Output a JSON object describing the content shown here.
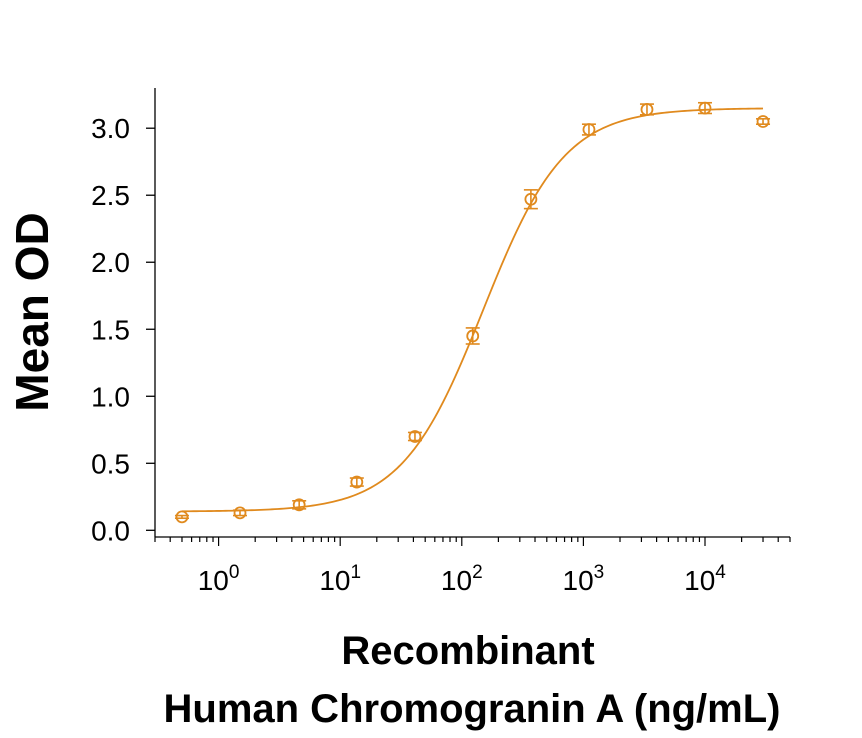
{
  "chart_data": {
    "type": "scatter",
    "title": "",
    "xlabel_lines": [
      "Recombinant",
      "Human Chromogranin A (ng/mL)"
    ],
    "ylabel": "Mean OD",
    "x_scale": "log",
    "xlim": [
      0.3,
      50000
    ],
    "ylim": [
      -0.05,
      3.3
    ],
    "x_ticks": [
      {
        "value": 1,
        "base": "10",
        "exp": "0"
      },
      {
        "value": 10,
        "base": "10",
        "exp": "1"
      },
      {
        "value": 100,
        "base": "10",
        "exp": "2"
      },
      {
        "value": 1000,
        "base": "10",
        "exp": "3"
      },
      {
        "value": 10000,
        "base": "10",
        "exp": "4"
      }
    ],
    "y_ticks": [
      {
        "value": 0.0,
        "label": "0.0"
      },
      {
        "value": 0.5,
        "label": "0.5"
      },
      {
        "value": 1.0,
        "label": "1.0"
      },
      {
        "value": 1.5,
        "label": "1.5"
      },
      {
        "value": 2.0,
        "label": "2.0"
      },
      {
        "value": 2.5,
        "label": "2.5"
      },
      {
        "value": 3.0,
        "label": "3.0"
      }
    ],
    "color": "#e08a1e",
    "grid": false,
    "series": [
      {
        "x": [
          0.5,
          1.5,
          4.6,
          13.7,
          41.2,
          123,
          370,
          1111,
          3333,
          10000,
          30000
        ],
        "y": [
          0.1,
          0.13,
          0.19,
          0.36,
          0.7,
          1.45,
          2.47,
          2.99,
          3.14,
          3.15,
          3.05
        ],
        "err": [
          0.01,
          0.02,
          0.03,
          0.03,
          0.03,
          0.06,
          0.07,
          0.04,
          0.04,
          0.04,
          0.02
        ]
      }
    ],
    "fit_curve": {
      "model": "4PL",
      "bottom": 0.14,
      "top": 3.15,
      "ec50": 150,
      "hill": 1.3
    }
  }
}
